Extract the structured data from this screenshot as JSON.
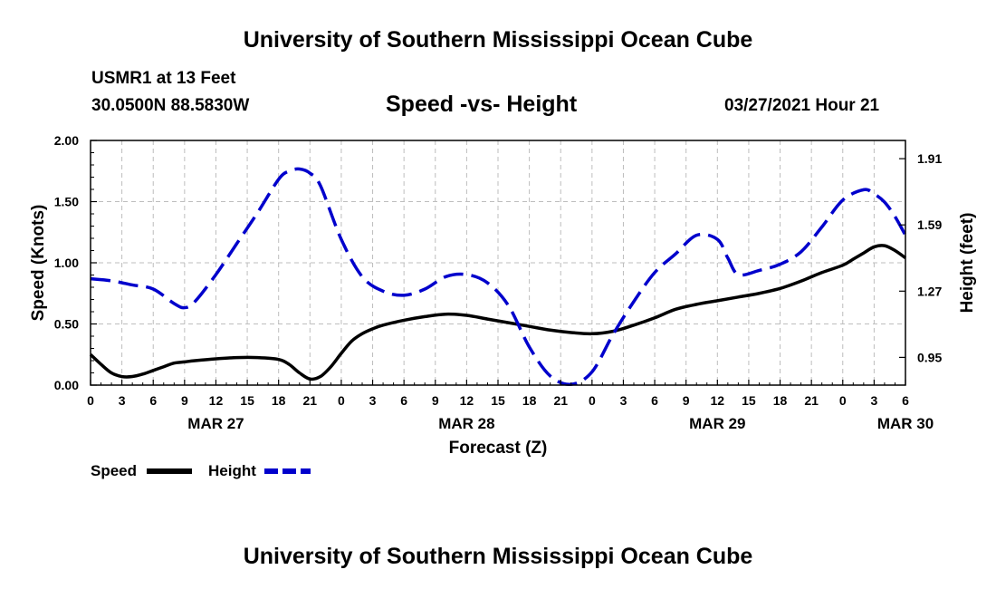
{
  "header": {
    "title": "University of Southern Mississippi Ocean Cube",
    "station": "USMR1 at 13 Feet",
    "coordinates": "30.0500N  88.5830W",
    "subtitle": "Speed -vs- Height",
    "datetime": "03/27/2021 Hour 21"
  },
  "footer": {
    "title": "University of Southern Mississippi Ocean Cube"
  },
  "chart_data": {
    "type": "line",
    "title": "Speed -vs- Height",
    "xlabel": "Forecast (Z)",
    "ylabel": "Speed (Knots)",
    "y2label": "Height (feet)",
    "x_range": [
      0,
      78
    ],
    "x_ticks": [
      0,
      3,
      6,
      9,
      12,
      15,
      18,
      21,
      24,
      27,
      30,
      33,
      36,
      39,
      42,
      45,
      48,
      51,
      54,
      57,
      60,
      63,
      66,
      69,
      72,
      75,
      78
    ],
    "x_tick_labels": [
      "0",
      "3",
      "6",
      "9",
      "12",
      "15",
      "18",
      "21",
      "0",
      "3",
      "6",
      "9",
      "12",
      "15",
      "18",
      "21",
      "0",
      "3",
      "6",
      "9",
      "12",
      "15",
      "18",
      "21",
      "0",
      "3",
      "6"
    ],
    "day_labels": [
      {
        "label": "MAR 27",
        "x": 12
      },
      {
        "label": "MAR 28",
        "x": 36
      },
      {
        "label": "MAR 29",
        "x": 60
      },
      {
        "label": "MAR 30",
        "x": 78
      }
    ],
    "y_left": {
      "range": [
        0,
        2.0
      ],
      "ticks": [
        0,
        0.5,
        1.0,
        1.5,
        2.0
      ],
      "tick_labels": [
        "0.00",
        "0.50",
        "1.00",
        "1.50",
        "2.00"
      ]
    },
    "y_right": {
      "range": [
        0.816,
        1.998
      ],
      "ticks": [
        0.95,
        1.27,
        1.59,
        1.91
      ],
      "tick_labels": [
        "0.95",
        "1.27",
        "1.59",
        "1.91"
      ]
    },
    "grid": true,
    "legend_position": "bottom-left",
    "series": [
      {
        "name": "Speed",
        "axis": "left",
        "color": "#000000",
        "dash": "solid",
        "x": [
          0,
          1,
          2,
          3,
          4,
          5,
          6,
          7,
          8,
          9,
          10,
          12,
          14,
          16,
          18,
          19,
          20,
          21,
          22,
          23,
          24,
          25,
          26,
          27,
          28,
          30,
          32,
          34,
          36,
          38,
          40,
          42,
          44,
          46,
          48,
          50,
          52,
          54,
          56,
          58,
          60,
          62,
          64,
          66,
          68,
          70,
          72,
          73,
          74,
          75,
          76,
          77,
          78
        ],
        "values": [
          0.25,
          0.17,
          0.1,
          0.07,
          0.07,
          0.09,
          0.12,
          0.15,
          0.18,
          0.19,
          0.2,
          0.215,
          0.225,
          0.225,
          0.21,
          0.17,
          0.1,
          0.05,
          0.07,
          0.15,
          0.26,
          0.36,
          0.42,
          0.46,
          0.49,
          0.53,
          0.56,
          0.58,
          0.57,
          0.54,
          0.51,
          0.48,
          0.45,
          0.43,
          0.42,
          0.44,
          0.49,
          0.55,
          0.62,
          0.66,
          0.69,
          0.72,
          0.75,
          0.79,
          0.85,
          0.92,
          0.98,
          1.03,
          1.08,
          1.13,
          1.14,
          1.1,
          1.04
        ]
      },
      {
        "name": "Height",
        "axis": "right",
        "color": "#0000cc",
        "dash": "dashed",
        "x": [
          0,
          2,
          4,
          6,
          8,
          9,
          10,
          12,
          14,
          16,
          18,
          19,
          20,
          21,
          22,
          24,
          26,
          28,
          30,
          32,
          34,
          36,
          38,
          40,
          42,
          44,
          46,
          48,
          50,
          52,
          54,
          56,
          58,
          60,
          61,
          62,
          64,
          66,
          68,
          70,
          72,
          74,
          75,
          76,
          77,
          78
        ],
        "values": [
          1.33,
          1.32,
          1.3,
          1.28,
          1.21,
          1.19,
          1.22,
          1.35,
          1.5,
          1.65,
          1.81,
          1.85,
          1.86,
          1.84,
          1.78,
          1.52,
          1.34,
          1.27,
          1.25,
          1.28,
          1.34,
          1.35,
          1.31,
          1.2,
          1.0,
          0.86,
          0.82,
          0.88,
          1.06,
          1.22,
          1.36,
          1.45,
          1.54,
          1.52,
          1.43,
          1.35,
          1.37,
          1.4,
          1.46,
          1.58,
          1.71,
          1.76,
          1.74,
          1.7,
          1.63,
          1.54
        ]
      }
    ]
  }
}
